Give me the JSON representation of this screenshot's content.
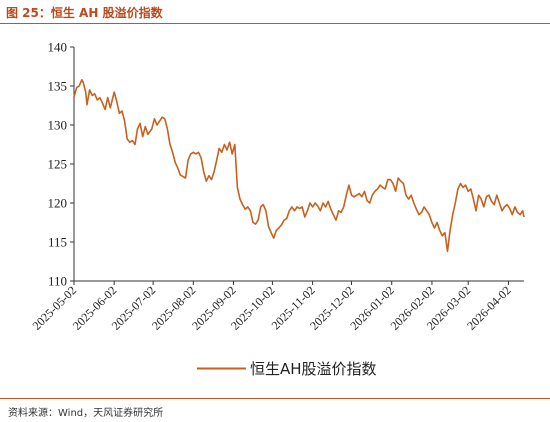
{
  "figure": {
    "title": "图 25：恒生 AH 股溢价指数",
    "source": "资料来源：Wind，天风证券研究所",
    "line_color": "#c8601e"
  },
  "chart_data": {
    "type": "line",
    "title": "",
    "xlabel": "",
    "ylabel": "",
    "ylim": [
      110,
      140
    ],
    "yticks": [
      110,
      115,
      120,
      125,
      130,
      135,
      140
    ],
    "xticks": [
      "2025-05-02",
      "2025-06-02",
      "2025-07-02",
      "2025-08-02",
      "2025-09-02",
      "2025-10-02",
      "2025-11-02",
      "2025-12-02",
      "2026-01-02",
      "2026-02-02",
      "2026-03-02",
      "2026-04-02"
    ],
    "x_range": [
      "2025-05-02",
      "2026-04-14"
    ],
    "grid": false,
    "legend_position": "bottom",
    "series": [
      {
        "name": "恒生AH股溢价指数",
        "points": [
          [
            "2025-05-02",
            133.6
          ],
          [
            "2025-05-04",
            134.8
          ],
          [
            "2025-05-06",
            135.0
          ],
          [
            "2025-05-08",
            135.8
          ],
          [
            "2025-05-09",
            135.5
          ],
          [
            "2025-05-11",
            134.2
          ],
          [
            "2025-05-12",
            132.6
          ],
          [
            "2025-05-14",
            134.5
          ],
          [
            "2025-05-16",
            133.8
          ],
          [
            "2025-05-18",
            134.0
          ],
          [
            "2025-05-20",
            133.2
          ],
          [
            "2025-05-22",
            133.5
          ],
          [
            "2025-05-24",
            132.8
          ],
          [
            "2025-05-26",
            132.0
          ],
          [
            "2025-05-28",
            133.5
          ],
          [
            "2025-05-30",
            132.2
          ],
          [
            "2025-06-02",
            134.2
          ],
          [
            "2025-06-04",
            133.0
          ],
          [
            "2025-06-06",
            131.5
          ],
          [
            "2025-06-08",
            131.8
          ],
          [
            "2025-06-10",
            130.5
          ],
          [
            "2025-06-12",
            128.2
          ],
          [
            "2025-06-14",
            127.8
          ],
          [
            "2025-06-16",
            128.0
          ],
          [
            "2025-06-18",
            127.5
          ],
          [
            "2025-06-20",
            129.5
          ],
          [
            "2025-06-22",
            130.2
          ],
          [
            "2025-06-24",
            128.5
          ],
          [
            "2025-06-26",
            129.8
          ],
          [
            "2025-06-28",
            128.8
          ],
          [
            "2025-07-01",
            129.5
          ],
          [
            "2025-07-03",
            130.8
          ],
          [
            "2025-07-05",
            130.0
          ],
          [
            "2025-07-07",
            130.5
          ],
          [
            "2025-07-09",
            131.0
          ],
          [
            "2025-07-11",
            130.8
          ],
          [
            "2025-07-13",
            129.5
          ],
          [
            "2025-07-15",
            127.5
          ],
          [
            "2025-07-17",
            126.5
          ],
          [
            "2025-07-19",
            125.2
          ],
          [
            "2025-07-21",
            124.5
          ],
          [
            "2025-07-23",
            123.6
          ],
          [
            "2025-07-25",
            123.4
          ],
          [
            "2025-07-27",
            123.2
          ],
          [
            "2025-07-29",
            125.5
          ],
          [
            "2025-07-31",
            126.3
          ],
          [
            "2025-08-02",
            126.5
          ],
          [
            "2025-08-04",
            126.3
          ],
          [
            "2025-08-06",
            126.5
          ],
          [
            "2025-08-08",
            125.8
          ],
          [
            "2025-08-10",
            124.0
          ],
          [
            "2025-08-12",
            122.8
          ],
          [
            "2025-08-14",
            123.5
          ],
          [
            "2025-08-16",
            123.0
          ],
          [
            "2025-08-18",
            124.0
          ],
          [
            "2025-08-20",
            125.5
          ],
          [
            "2025-08-22",
            127.0
          ],
          [
            "2025-08-24",
            126.5
          ],
          [
            "2025-08-26",
            127.5
          ],
          [
            "2025-08-28",
            126.8
          ],
          [
            "2025-08-30",
            127.8
          ],
          [
            "2025-09-01",
            126.3
          ],
          [
            "2025-09-03",
            127.5
          ],
          [
            "2025-09-05",
            122.0
          ],
          [
            "2025-09-07",
            120.5
          ],
          [
            "2025-09-09",
            119.8
          ],
          [
            "2025-09-11",
            119.2
          ],
          [
            "2025-09-13",
            119.5
          ],
          [
            "2025-09-15",
            119.0
          ],
          [
            "2025-09-17",
            117.5
          ],
          [
            "2025-09-19",
            117.3
          ],
          [
            "2025-09-21",
            117.8
          ],
          [
            "2025-09-23",
            119.5
          ],
          [
            "2025-09-25",
            119.8
          ],
          [
            "2025-09-27",
            119.0
          ],
          [
            "2025-09-29",
            117.0
          ],
          [
            "2025-10-01",
            116.2
          ],
          [
            "2025-10-03",
            115.5
          ],
          [
            "2025-10-05",
            116.5
          ],
          [
            "2025-10-07",
            116.8
          ],
          [
            "2025-10-09",
            117.2
          ],
          [
            "2025-10-11",
            117.8
          ],
          [
            "2025-10-13",
            118.0
          ],
          [
            "2025-10-15",
            119.0
          ],
          [
            "2025-10-17",
            119.5
          ],
          [
            "2025-10-19",
            119.0
          ],
          [
            "2025-10-21",
            119.5
          ],
          [
            "2025-10-23",
            119.3
          ],
          [
            "2025-10-25",
            119.5
          ],
          [
            "2025-10-27",
            118.2
          ],
          [
            "2025-10-29",
            119.0
          ],
          [
            "2025-10-31",
            120.0
          ],
          [
            "2025-11-02",
            119.5
          ],
          [
            "2025-11-04",
            120.0
          ],
          [
            "2025-11-06",
            119.6
          ],
          [
            "2025-11-08",
            119.0
          ],
          [
            "2025-11-10",
            120.0
          ],
          [
            "2025-11-12",
            119.5
          ],
          [
            "2025-11-14",
            120.2
          ],
          [
            "2025-11-16",
            119.2
          ],
          [
            "2025-11-18",
            118.5
          ],
          [
            "2025-11-20",
            117.8
          ],
          [
            "2025-11-22",
            119.0
          ],
          [
            "2025-11-24",
            118.8
          ],
          [
            "2025-11-26",
            119.5
          ],
          [
            "2025-11-28",
            121.0
          ],
          [
            "2025-11-30",
            122.3
          ],
          [
            "2025-12-02",
            121.0
          ],
          [
            "2025-12-04",
            120.8
          ],
          [
            "2025-12-06",
            121.0
          ],
          [
            "2025-12-08",
            121.2
          ],
          [
            "2025-12-10",
            120.8
          ],
          [
            "2025-12-12",
            121.5
          ],
          [
            "2025-12-14",
            120.3
          ],
          [
            "2025-12-16",
            120.0
          ],
          [
            "2025-12-18",
            121.0
          ],
          [
            "2025-12-20",
            121.5
          ],
          [
            "2025-12-22",
            121.8
          ],
          [
            "2025-12-24",
            122.3
          ],
          [
            "2025-12-26",
            122.0
          ],
          [
            "2025-12-28",
            121.8
          ],
          [
            "2025-12-30",
            123.0
          ],
          [
            "2026-01-01",
            123.0
          ],
          [
            "2026-01-03",
            122.5
          ],
          [
            "2026-01-05",
            121.5
          ],
          [
            "2026-01-07",
            123.2
          ],
          [
            "2026-01-09",
            122.8
          ],
          [
            "2026-01-11",
            122.5
          ],
          [
            "2026-01-13",
            121.0
          ],
          [
            "2026-01-15",
            120.5
          ],
          [
            "2026-01-17",
            121.0
          ],
          [
            "2026-01-19",
            120.0
          ],
          [
            "2026-01-21",
            119.2
          ],
          [
            "2026-01-23",
            118.5
          ],
          [
            "2026-01-25",
            118.8
          ],
          [
            "2026-01-27",
            119.5
          ],
          [
            "2026-01-29",
            119.0
          ],
          [
            "2026-01-31",
            118.5
          ],
          [
            "2026-02-02",
            117.5
          ],
          [
            "2026-02-04",
            116.8
          ],
          [
            "2026-02-06",
            117.5
          ],
          [
            "2026-02-08",
            116.5
          ],
          [
            "2026-02-10",
            115.8
          ],
          [
            "2026-02-12",
            116.2
          ],
          [
            "2026-02-14",
            113.8
          ],
          [
            "2026-02-16",
            116.5
          ],
          [
            "2026-02-18",
            118.5
          ],
          [
            "2026-02-20",
            120.0
          ],
          [
            "2026-02-22",
            121.8
          ],
          [
            "2026-02-24",
            122.5
          ],
          [
            "2026-02-26",
            122.0
          ],
          [
            "2026-02-28",
            122.3
          ],
          [
            "2026-03-02",
            121.5
          ],
          [
            "2026-03-04",
            121.8
          ],
          [
            "2026-03-06",
            120.5
          ],
          [
            "2026-03-08",
            119.0
          ],
          [
            "2026-03-10",
            121.0
          ],
          [
            "2026-03-12",
            120.5
          ],
          [
            "2026-03-14",
            119.5
          ],
          [
            "2026-03-16",
            120.8
          ],
          [
            "2026-03-18",
            121.0
          ],
          [
            "2026-03-20",
            120.2
          ],
          [
            "2026-03-22",
            119.8
          ],
          [
            "2026-03-24",
            121.0
          ],
          [
            "2026-03-26",
            120.0
          ],
          [
            "2026-03-28",
            119.0
          ],
          [
            "2026-03-30",
            119.5
          ],
          [
            "2026-04-01",
            119.8
          ],
          [
            "2026-04-03",
            119.3
          ],
          [
            "2026-04-05",
            118.5
          ],
          [
            "2026-04-07",
            119.5
          ],
          [
            "2026-04-09",
            118.8
          ],
          [
            "2026-04-11",
            118.5
          ],
          [
            "2026-04-13",
            119.0
          ],
          [
            "2026-04-14",
            118.2
          ]
        ]
      }
    ]
  }
}
